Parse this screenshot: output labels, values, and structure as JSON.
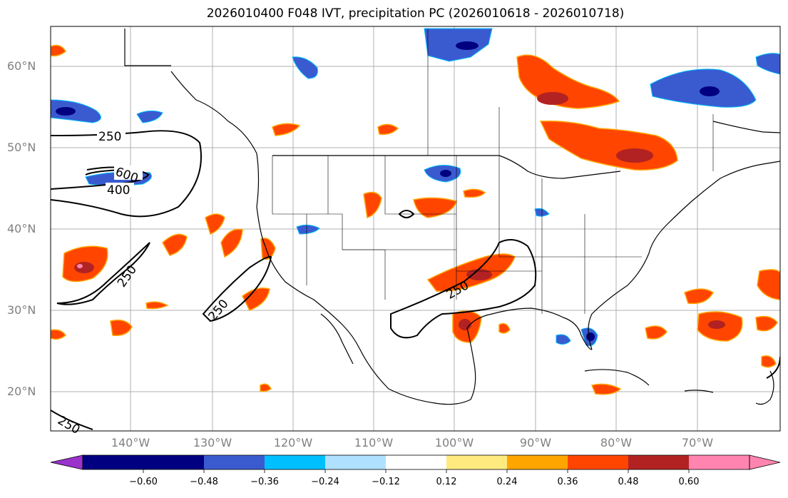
{
  "title": "2026010400 F048 IVT, precipitation PC (2026010618 - 2026010718)",
  "lat_labels": [
    "60°N",
    "50°N",
    "40°N",
    "30°N",
    "20°N"
  ],
  "lon_labels": [
    "140°W",
    "130°W",
    "120°W",
    "110°W",
    "100°W",
    "90°W",
    "80°W",
    "70°W"
  ],
  "ivt_contour_labels": [
    "250",
    "400",
    "600",
    "250",
    "250",
    "250",
    "250"
  ],
  "colorbar": {
    "tick_labels": [
      "−0.60",
      "−0.48",
      "−0.36",
      "−0.24",
      "−0.12",
      "0.12",
      "0.24",
      "0.36",
      "0.48",
      "0.60"
    ],
    "colors": [
      "#9933cc",
      "#000080",
      "#3a5bd0",
      "#00bfff",
      "#b0e0ff",
      "#ffffff",
      "#ffea80",
      "#ffa500",
      "#ff4500",
      "#b22222",
      "#ff85b0"
    ]
  },
  "colors": {
    "coast": "#000000",
    "grid": "#b0b0b0",
    "axis_label": "#808080",
    "ivt_contour": "#000000"
  }
}
